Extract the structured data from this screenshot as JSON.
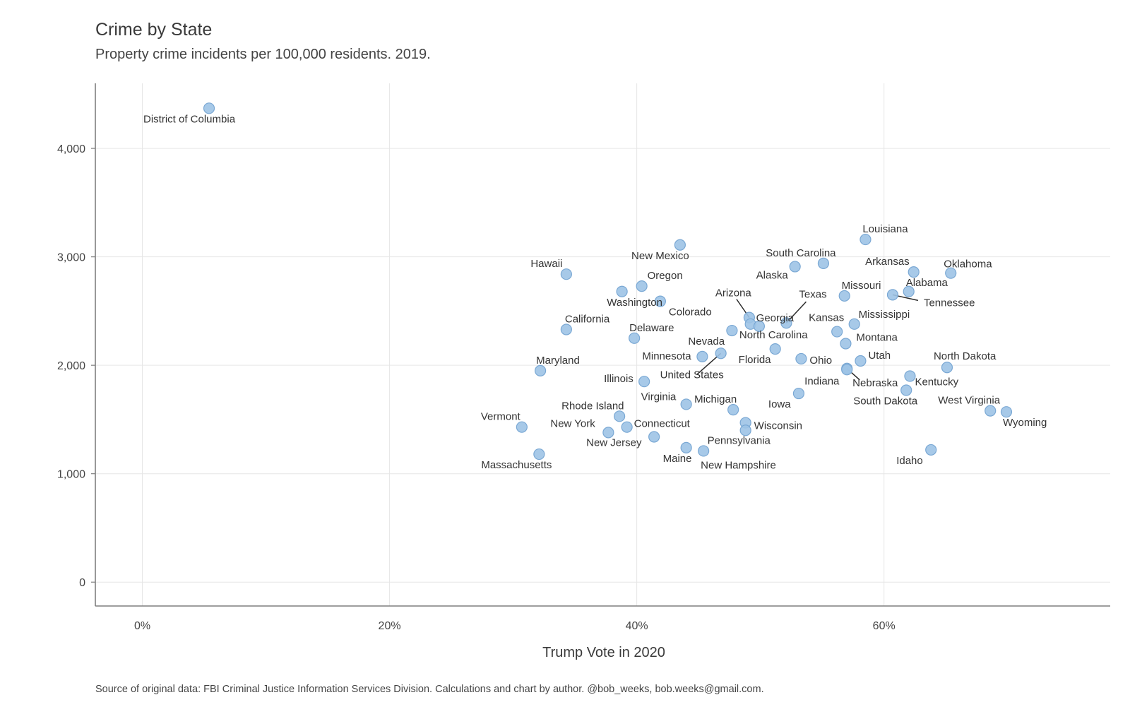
{
  "header": {
    "title": "Crime by State",
    "subtitle": "Property crime incidents per 100,000 residents. 2019."
  },
  "footer": {
    "caption": "Source of original data: FBI Criminal Justice Information Services Division. Calculations and chart by author. @bob_weeks, bob.weeks@gmail.com."
  },
  "chart_data": {
    "type": "scatter",
    "title": "Crime by State",
    "subtitle": "Property crime incidents per 100,000 residents. 2019.",
    "xlabel": "Trump Vote in 2020",
    "ylabel": "",
    "xlim": [
      -3.8,
      78.3
    ],
    "ylim": [
      -220,
      4600
    ],
    "x_ticks": [
      0,
      20,
      40,
      60
    ],
    "x_tick_labels": [
      "0%",
      "20%",
      "40%",
      "60%"
    ],
    "y_ticks": [
      0,
      1000,
      2000,
      3000,
      4000
    ],
    "y_tick_labels": [
      "0",
      "1,000",
      "2,000",
      "3,000",
      "4,000"
    ],
    "grid": true,
    "legend": "none",
    "point_color": "#9dc3e6",
    "point_stroke": "#7aa8d4",
    "points": [
      {
        "label": "District of Columbia",
        "x": 5.4,
        "y": 4370
      },
      {
        "label": "Louisiana",
        "x": 58.5,
        "y": 3160
      },
      {
        "label": "New Mexico",
        "x": 43.5,
        "y": 3110
      },
      {
        "label": "South Carolina",
        "x": 55.1,
        "y": 2940
      },
      {
        "label": "Alaska",
        "x": 52.8,
        "y": 2910
      },
      {
        "label": "Arkansas",
        "x": 62.4,
        "y": 2860
      },
      {
        "label": "Oklahoma",
        "x": 65.4,
        "y": 2850
      },
      {
        "label": "Hawaii",
        "x": 34.3,
        "y": 2840
      },
      {
        "label": "Oregon",
        "x": 40.4,
        "y": 2730
      },
      {
        "label": "Washington",
        "x": 38.8,
        "y": 2680
      },
      {
        "label": "Alabama",
        "x": 62.0,
        "y": 2680
      },
      {
        "label": "Tennessee",
        "x": 60.7,
        "y": 2650
      },
      {
        "label": "Missouri",
        "x": 56.8,
        "y": 2640
      },
      {
        "label": "Colorado",
        "x": 41.9,
        "y": 2590
      },
      {
        "label": "Arizona",
        "x": 49.1,
        "y": 2440
      },
      {
        "label": "Texas",
        "x": 52.1,
        "y": 2390
      },
      {
        "label": "Georgia",
        "x": 49.2,
        "y": 2380
      },
      {
        "label": "Mississippi",
        "x": 57.6,
        "y": 2380
      },
      {
        "label": "North Carolina",
        "x": 49.9,
        "y": 2360
      },
      {
        "label": "California",
        "x": 34.3,
        "y": 2330
      },
      {
        "label": "Kansas",
        "x": 56.2,
        "y": 2310
      },
      {
        "label": "Delaware",
        "x": 39.8,
        "y": 2250
      },
      {
        "label": "Montana",
        "x": 56.9,
        "y": 2200
      },
      {
        "label": "Nevada",
        "x": 47.7,
        "y": 2320
      },
      {
        "label": "South Dakota",
        "x": 61.8,
        "y": 1770
      },
      {
        "label": "Florida",
        "x": 51.2,
        "y": 2150
      },
      {
        "label": "United States",
        "x": 46.8,
        "y": 2110
      },
      {
        "label": "Minnesota",
        "x": 45.3,
        "y": 2080
      },
      {
        "label": "Ohio",
        "x": 53.3,
        "y": 2060
      },
      {
        "label": "Utah",
        "x": 58.1,
        "y": 2040
      },
      {
        "label": "North Dakota",
        "x": 65.1,
        "y": 1980
      },
      {
        "label": "Nebraska",
        "x": 57.0,
        "y": 1970
      },
      {
        "label": "Maryland",
        "x": 32.2,
        "y": 1950
      },
      {
        "label": "Kentucky",
        "x": 62.1,
        "y": 1900
      },
      {
        "label": "Illinois",
        "x": 40.6,
        "y": 1850
      },
      {
        "label": "Indiana",
        "x": 57.0,
        "y": 1960
      },
      {
        "label": "Iowa",
        "x": 53.1,
        "y": 1740
      },
      {
        "label": "Virginia",
        "x": 44.0,
        "y": 1640
      },
      {
        "label": "Michigan",
        "x": 47.8,
        "y": 1590
      },
      {
        "label": "West Virginia",
        "x": 68.6,
        "y": 1580
      },
      {
        "label": "Wyoming",
        "x": 69.9,
        "y": 1570
      },
      {
        "label": "Rhode Island",
        "x": 38.6,
        "y": 1530
      },
      {
        "label": "Wisconsin",
        "x": 48.8,
        "y": 1470
      },
      {
        "label": "Connecticut",
        "x": 39.2,
        "y": 1430
      },
      {
        "label": "Vermont",
        "x": 30.7,
        "y": 1430
      },
      {
        "label": "Pennsylvania",
        "x": 48.8,
        "y": 1400
      },
      {
        "label": "New York",
        "x": 37.7,
        "y": 1380
      },
      {
        "label": "New Jersey",
        "x": 41.4,
        "y": 1340
      },
      {
        "label": "Maine",
        "x": 44.0,
        "y": 1240
      },
      {
        "label": "Idaho",
        "x": 63.8,
        "y": 1220
      },
      {
        "label": "New Hampshire",
        "x": 45.4,
        "y": 1210
      },
      {
        "label": "Massachusetts",
        "x": 32.1,
        "y": 1180
      }
    ]
  }
}
